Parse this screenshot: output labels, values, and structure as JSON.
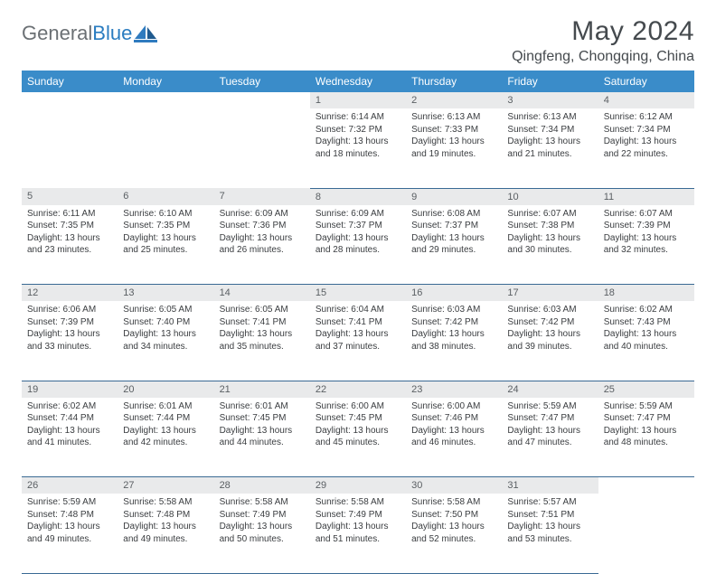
{
  "logo": {
    "gray": "General",
    "blue": "Blue"
  },
  "title": "May 2024",
  "location": "Qingfeng, Chongqing, China",
  "header_bg": "#3a8cc9",
  "daynum_bg": "#e9eaeb",
  "border_color": "#3a6a94",
  "weekdays": [
    "Sunday",
    "Monday",
    "Tuesday",
    "Wednesday",
    "Thursday",
    "Friday",
    "Saturday"
  ],
  "weeks": [
    [
      {
        "n": "",
        "lines": []
      },
      {
        "n": "",
        "lines": []
      },
      {
        "n": "",
        "lines": []
      },
      {
        "n": "1",
        "lines": [
          "Sunrise: 6:14 AM",
          "Sunset: 7:32 PM",
          "Daylight: 13 hours and 18 minutes."
        ]
      },
      {
        "n": "2",
        "lines": [
          "Sunrise: 6:13 AM",
          "Sunset: 7:33 PM",
          "Daylight: 13 hours and 19 minutes."
        ]
      },
      {
        "n": "3",
        "lines": [
          "Sunrise: 6:13 AM",
          "Sunset: 7:34 PM",
          "Daylight: 13 hours and 21 minutes."
        ]
      },
      {
        "n": "4",
        "lines": [
          "Sunrise: 6:12 AM",
          "Sunset: 7:34 PM",
          "Daylight: 13 hours and 22 minutes."
        ]
      }
    ],
    [
      {
        "n": "5",
        "lines": [
          "Sunrise: 6:11 AM",
          "Sunset: 7:35 PM",
          "Daylight: 13 hours and 23 minutes."
        ]
      },
      {
        "n": "6",
        "lines": [
          "Sunrise: 6:10 AM",
          "Sunset: 7:35 PM",
          "Daylight: 13 hours and 25 minutes."
        ]
      },
      {
        "n": "7",
        "lines": [
          "Sunrise: 6:09 AM",
          "Sunset: 7:36 PM",
          "Daylight: 13 hours and 26 minutes."
        ]
      },
      {
        "n": "8",
        "lines": [
          "Sunrise: 6:09 AM",
          "Sunset: 7:37 PM",
          "Daylight: 13 hours and 28 minutes."
        ]
      },
      {
        "n": "9",
        "lines": [
          "Sunrise: 6:08 AM",
          "Sunset: 7:37 PM",
          "Daylight: 13 hours and 29 minutes."
        ]
      },
      {
        "n": "10",
        "lines": [
          "Sunrise: 6:07 AM",
          "Sunset: 7:38 PM",
          "Daylight: 13 hours and 30 minutes."
        ]
      },
      {
        "n": "11",
        "lines": [
          "Sunrise: 6:07 AM",
          "Sunset: 7:39 PM",
          "Daylight: 13 hours and 32 minutes."
        ]
      }
    ],
    [
      {
        "n": "12",
        "lines": [
          "Sunrise: 6:06 AM",
          "Sunset: 7:39 PM",
          "Daylight: 13 hours and 33 minutes."
        ]
      },
      {
        "n": "13",
        "lines": [
          "Sunrise: 6:05 AM",
          "Sunset: 7:40 PM",
          "Daylight: 13 hours and 34 minutes."
        ]
      },
      {
        "n": "14",
        "lines": [
          "Sunrise: 6:05 AM",
          "Sunset: 7:41 PM",
          "Daylight: 13 hours and 35 minutes."
        ]
      },
      {
        "n": "15",
        "lines": [
          "Sunrise: 6:04 AM",
          "Sunset: 7:41 PM",
          "Daylight: 13 hours and 37 minutes."
        ]
      },
      {
        "n": "16",
        "lines": [
          "Sunrise: 6:03 AM",
          "Sunset: 7:42 PM",
          "Daylight: 13 hours and 38 minutes."
        ]
      },
      {
        "n": "17",
        "lines": [
          "Sunrise: 6:03 AM",
          "Sunset: 7:42 PM",
          "Daylight: 13 hours and 39 minutes."
        ]
      },
      {
        "n": "18",
        "lines": [
          "Sunrise: 6:02 AM",
          "Sunset: 7:43 PM",
          "Daylight: 13 hours and 40 minutes."
        ]
      }
    ],
    [
      {
        "n": "19",
        "lines": [
          "Sunrise: 6:02 AM",
          "Sunset: 7:44 PM",
          "Daylight: 13 hours and 41 minutes."
        ]
      },
      {
        "n": "20",
        "lines": [
          "Sunrise: 6:01 AM",
          "Sunset: 7:44 PM",
          "Daylight: 13 hours and 42 minutes."
        ]
      },
      {
        "n": "21",
        "lines": [
          "Sunrise: 6:01 AM",
          "Sunset: 7:45 PM",
          "Daylight: 13 hours and 44 minutes."
        ]
      },
      {
        "n": "22",
        "lines": [
          "Sunrise: 6:00 AM",
          "Sunset: 7:45 PM",
          "Daylight: 13 hours and 45 minutes."
        ]
      },
      {
        "n": "23",
        "lines": [
          "Sunrise: 6:00 AM",
          "Sunset: 7:46 PM",
          "Daylight: 13 hours and 46 minutes."
        ]
      },
      {
        "n": "24",
        "lines": [
          "Sunrise: 5:59 AM",
          "Sunset: 7:47 PM",
          "Daylight: 13 hours and 47 minutes."
        ]
      },
      {
        "n": "25",
        "lines": [
          "Sunrise: 5:59 AM",
          "Sunset: 7:47 PM",
          "Daylight: 13 hours and 48 minutes."
        ]
      }
    ],
    [
      {
        "n": "26",
        "lines": [
          "Sunrise: 5:59 AM",
          "Sunset: 7:48 PM",
          "Daylight: 13 hours and 49 minutes."
        ]
      },
      {
        "n": "27",
        "lines": [
          "Sunrise: 5:58 AM",
          "Sunset: 7:48 PM",
          "Daylight: 13 hours and 49 minutes."
        ]
      },
      {
        "n": "28",
        "lines": [
          "Sunrise: 5:58 AM",
          "Sunset: 7:49 PM",
          "Daylight: 13 hours and 50 minutes."
        ]
      },
      {
        "n": "29",
        "lines": [
          "Sunrise: 5:58 AM",
          "Sunset: 7:49 PM",
          "Daylight: 13 hours and 51 minutes."
        ]
      },
      {
        "n": "30",
        "lines": [
          "Sunrise: 5:58 AM",
          "Sunset: 7:50 PM",
          "Daylight: 13 hours and 52 minutes."
        ]
      },
      {
        "n": "31",
        "lines": [
          "Sunrise: 5:57 AM",
          "Sunset: 7:51 PM",
          "Daylight: 13 hours and 53 minutes."
        ]
      },
      {
        "n": "",
        "lines": []
      }
    ]
  ]
}
